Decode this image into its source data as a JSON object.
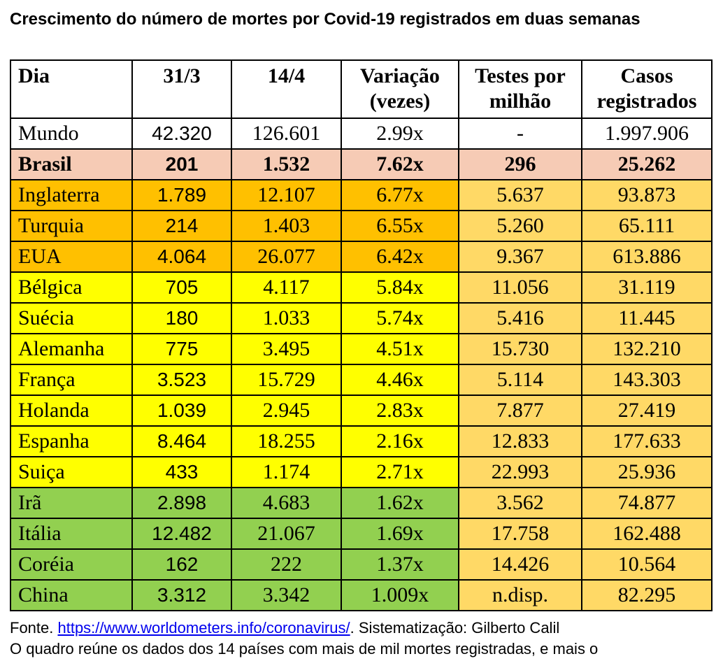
{
  "title": "Crescimento do número de mortes por Covid-19 registrados em duas semanas",
  "headers": {
    "dia": "Dia",
    "d1": "31/3",
    "d2": "14/4",
    "var": "Variação (vezes)",
    "testes": "Testes por milhão",
    "casos": "Casos registrados"
  },
  "rows": [
    {
      "country": "Mundo",
      "d1": "42.320",
      "d2": "126.601",
      "var": "2.99x",
      "testes": "-",
      "casos": "1.997.906",
      "band": "world"
    },
    {
      "country": "Brasil",
      "d1": "201",
      "d2": "1.532",
      "var": "7.62x",
      "testes": "296",
      "casos": "25.262",
      "band": "brasil"
    },
    {
      "country": "Inglaterra",
      "d1": "1.789",
      "d2": "12.107",
      "var": "6.77x",
      "testes": "5.637",
      "casos": "93.873",
      "band": "orange"
    },
    {
      "country": "Turquia",
      "d1": "214",
      "d2": "1.403",
      "var": "6.55x",
      "testes": "5.260",
      "casos": "65.111",
      "band": "orange"
    },
    {
      "country": "EUA",
      "d1": "4.064",
      "d2": "26.077",
      "var": "6.42x",
      "testes": "9.367",
      "casos": "613.886",
      "band": "orange"
    },
    {
      "country": "Bélgica",
      "d1": "705",
      "d2": "4.117",
      "var": "5.84x",
      "testes": "11.056",
      "casos": "31.119",
      "band": "yellow"
    },
    {
      "country": "Suécia",
      "d1": "180",
      "d2": "1.033",
      "var": "5.74x",
      "testes": "5.416",
      "casos": "11.445",
      "band": "yellow"
    },
    {
      "country": "Alemanha",
      "d1": "775",
      "d2": "3.495",
      "var": "4.51x",
      "testes": "15.730",
      "casos": "132.210",
      "band": "yellow"
    },
    {
      "country": "França",
      "d1": "3.523",
      "d2": "15.729",
      "var": "4.46x",
      "testes": "5.114",
      "casos": "143.303",
      "band": "yellow"
    },
    {
      "country": "Holanda",
      "d1": "1.039",
      "d2": "2.945",
      "var": "2.83x",
      "testes": "7.877",
      "casos": "27.419",
      "band": "yellow"
    },
    {
      "country": "Espanha",
      "d1": "8.464",
      "d2": "18.255",
      "var": "2.16x",
      "testes": "12.833",
      "casos": "177.633",
      "band": "yellow"
    },
    {
      "country": "Suiça",
      "d1": "433",
      "d2": "1.174",
      "var": "2.71x",
      "testes": "22.993",
      "casos": "25.936",
      "band": "yellow"
    },
    {
      "country": "Irã",
      "d1": "2.898",
      "d2": "4.683",
      "var": "1.62x",
      "testes": "3.562",
      "casos": "74.877",
      "band": "green"
    },
    {
      "country": "Itália",
      "d1": "12.482",
      "d2": "21.067",
      "var": "1.69x",
      "testes": "17.758",
      "casos": "162.488",
      "band": "green"
    },
    {
      "country": "Coréia",
      "d1": "162",
      "d2": "222",
      "var": "1.37x",
      "testes": "14.426",
      "casos": "10.564",
      "band": "green"
    },
    {
      "country": "China",
      "d1": "3.312",
      "d2": "3.342",
      "var": "1.009x",
      "testes": "n.disp.",
      "casos": "82.295",
      "band": "green"
    }
  ],
  "footer": {
    "prefix": "Fonte. ",
    "link": "https://www.worldometers.info/coronavirus/",
    "suffix": ". Sistematização: Gilberto Calil",
    "line2": "O quadro reúne os dados dos 14 países com mais de mil mortes registradas, e mais o"
  },
  "colors": {
    "brasil": "#f6cbb5",
    "orange": "#ffc000",
    "yellow": "#ffff00",
    "green": "#92d050",
    "light": "#ffd966",
    "link": "#0000ee"
  }
}
